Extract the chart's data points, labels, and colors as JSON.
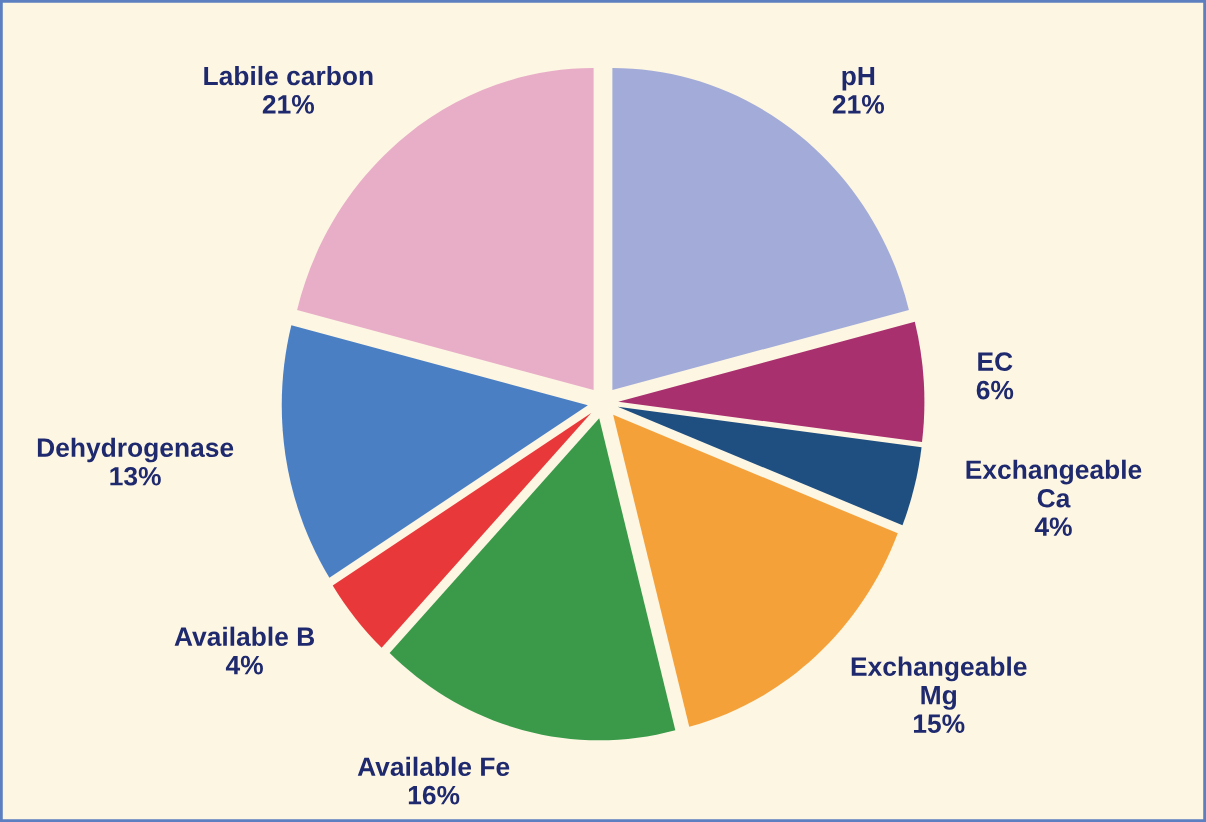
{
  "chart_data": {
    "type": "pie",
    "categories": [
      "pH",
      "EC",
      "Exchangeable\nCa",
      "Exchangeable\nMg",
      "Available Fe",
      "Available B",
      "Dehydrogenase",
      "Labile carbon"
    ],
    "values": [
      21,
      6,
      4,
      15,
      16,
      4,
      13,
      21
    ],
    "value_labels": [
      "21%",
      "6%",
      "4%",
      "15%",
      "16%",
      "4%",
      "13%",
      "21%"
    ],
    "colors": [
      "#a3acd8",
      "#a8306e",
      "#1f4e80",
      "#f5a13a",
      "#3a9a4a",
      "#e8383a",
      "#4a7fc4",
      "#e8aec8"
    ],
    "legend": false
  }
}
